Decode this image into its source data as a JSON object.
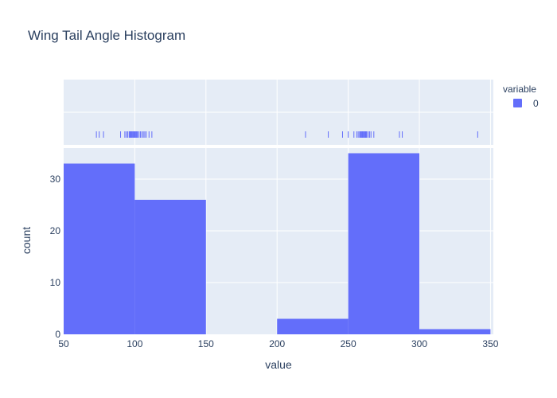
{
  "chart_data": {
    "type": "histogram",
    "title": "Wing Tail Angle Histogram",
    "xlabel": "value",
    "ylabel": "count",
    "xlim": [
      50,
      352
    ],
    "ylim": [
      0,
      36
    ],
    "x_ticks": [
      50,
      100,
      150,
      200,
      250,
      300,
      350
    ],
    "y_ticks": [
      0,
      10,
      20,
      30
    ],
    "legend": {
      "title": "variable",
      "placement": "top-right"
    },
    "series": [
      {
        "name": "0",
        "color": "#636efa",
        "bins": [
          {
            "start": 50,
            "end": 100,
            "count": 33
          },
          {
            "start": 100,
            "end": 150,
            "count": 26
          },
          {
            "start": 150,
            "end": 200,
            "count": 0
          },
          {
            "start": 200,
            "end": 250,
            "count": 3
          },
          {
            "start": 250,
            "end": 300,
            "count": 35
          },
          {
            "start": 300,
            "end": 350,
            "count": 1
          }
        ],
        "rug_values": [
          73,
          75,
          78,
          90,
          93,
          94,
          95,
          96,
          96.5,
          97,
          97.5,
          98,
          98.5,
          99,
          99.5,
          100,
          100.5,
          101,
          101.5,
          102,
          103,
          104,
          105,
          106,
          107,
          108,
          110,
          112,
          220,
          236,
          246,
          250,
          254,
          256,
          257,
          258,
          258.5,
          259,
          259.5,
          260,
          260.5,
          261,
          261.5,
          262,
          262.5,
          263,
          264,
          265,
          266,
          268,
          286,
          288,
          341
        ]
      }
    ]
  }
}
